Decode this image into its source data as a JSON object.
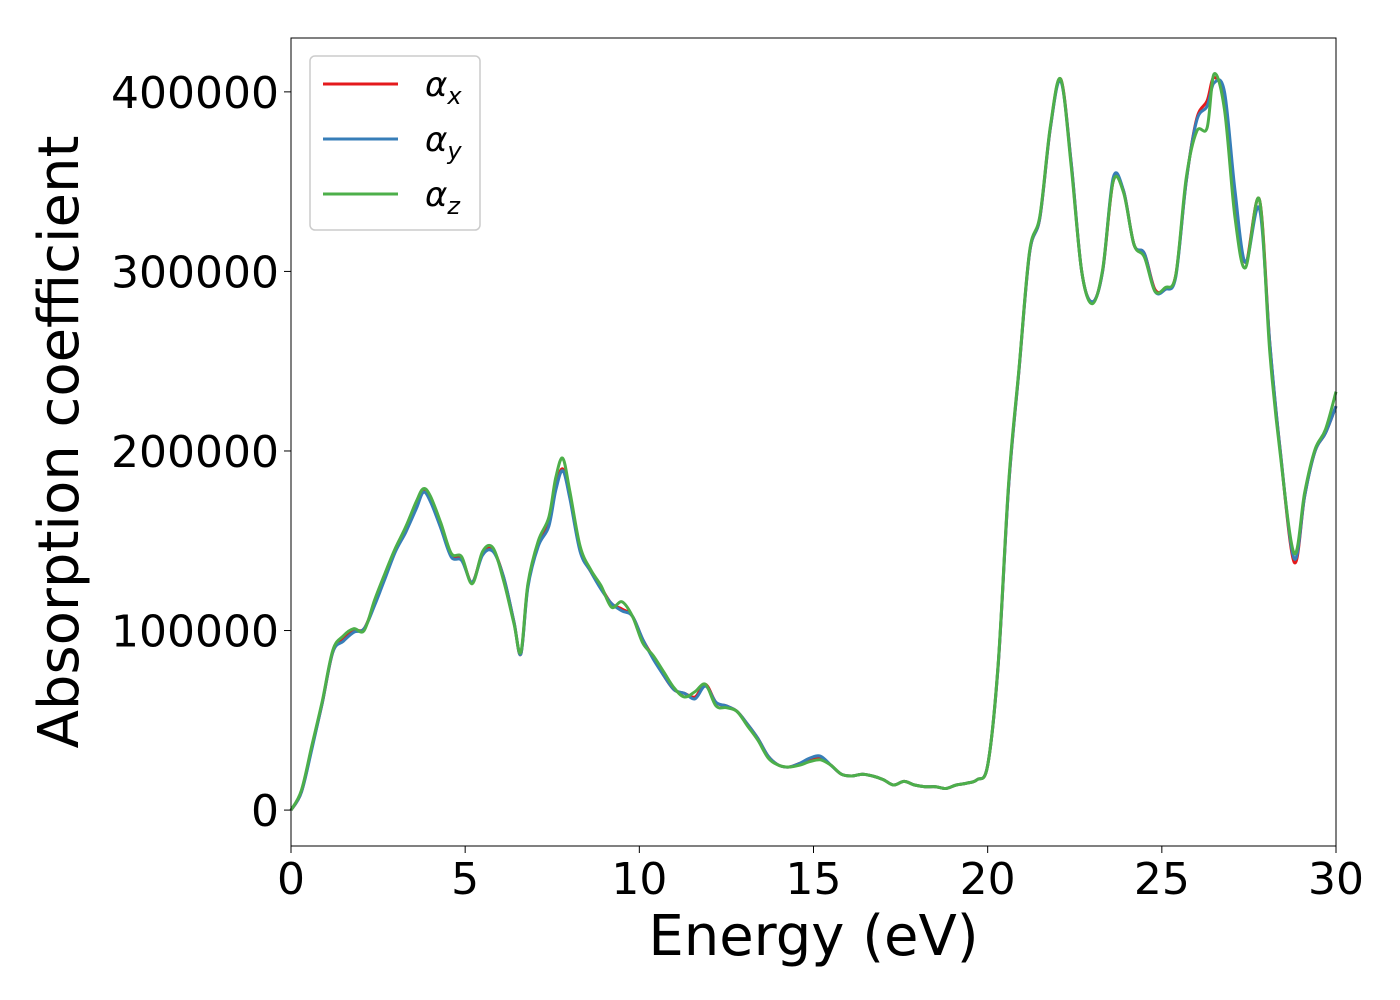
{
  "chart_data": {
    "type": "line",
    "title": "",
    "xlabel": "Energy (eV)",
    "ylabel": "Absorption coefficient",
    "xlim": [
      0,
      30
    ],
    "ylim": [
      -20000,
      430000
    ],
    "xticks": [
      0,
      5,
      10,
      15,
      20,
      25,
      30
    ],
    "xtick_labels": [
      "0",
      "5",
      "10",
      "15",
      "20",
      "25",
      "30"
    ],
    "yticks": [
      0,
      100000,
      200000,
      300000,
      400000
    ],
    "ytick_labels": [
      "0",
      "100000",
      "200000",
      "300000",
      "400000"
    ],
    "grid": false,
    "legend_position": "top-left",
    "series": [
      {
        "name": "α",
        "subscript": "x",
        "color": "#e41a1c",
        "x": [
          0,
          0.3,
          0.6,
          0.9,
          1.2,
          1.5,
          1.8,
          2.1,
          2.4,
          2.7,
          3.0,
          3.3,
          3.6,
          3.8,
          4.0,
          4.3,
          4.6,
          4.9,
          5.2,
          5.5,
          5.8,
          6.1,
          6.4,
          6.6,
          6.8,
          7.1,
          7.4,
          7.6,
          7.8,
          8.0,
          8.3,
          8.6,
          8.9,
          9.2,
          9.5,
          9.8,
          10.1,
          10.4,
          10.7,
          11.0,
          11.3,
          11.6,
          11.9,
          12.2,
          12.5,
          12.8,
          13.1,
          13.4,
          13.7,
          14.0,
          14.3,
          14.6,
          14.9,
          15.2,
          15.5,
          15.8,
          16.1,
          16.4,
          16.7,
          17.0,
          17.3,
          17.6,
          17.9,
          18.2,
          18.5,
          18.8,
          19.1,
          19.4,
          19.7,
          20.0,
          20.3,
          20.6,
          20.9,
          21.2,
          21.5,
          21.8,
          22.1,
          22.4,
          22.7,
          23.0,
          23.3,
          23.6,
          23.9,
          24.2,
          24.5,
          24.8,
          25.1,
          25.4,
          25.7,
          26.0,
          26.3,
          26.5,
          26.8,
          27.1,
          27.4,
          27.8,
          28.1,
          28.4,
          28.8,
          29.1,
          29.4,
          29.7,
          30.0
        ],
        "y": [
          0,
          10000,
          35000,
          60000,
          88000,
          95000,
          100000,
          101000,
          115000,
          130000,
          145000,
          155000,
          170000,
          178000,
          173000,
          158000,
          142000,
          140000,
          127000,
          143000,
          145000,
          130000,
          105000,
          87000,
          125000,
          148000,
          160000,
          180000,
          190000,
          175000,
          145000,
          133000,
          124000,
          115000,
          112000,
          108000,
          95000,
          85000,
          75000,
          67000,
          65000,
          63000,
          70000,
          60000,
          58000,
          55000,
          48000,
          40000,
          30000,
          25000,
          24000,
          26000,
          28000,
          29000,
          25000,
          20000,
          19000,
          20000,
          19000,
          17000,
          14000,
          16000,
          14000,
          13000,
          13000,
          12000,
          14000,
          15000,
          17000,
          25000,
          80000,
          180000,
          245000,
          310000,
          330000,
          380000,
          407000,
          360000,
          300000,
          283000,
          300000,
          350000,
          345000,
          315000,
          310000,
          290000,
          290000,
          298000,
          350000,
          385000,
          395000,
          408000,
          395000,
          340000,
          305000,
          340000,
          260000,
          200000,
          138000,
          175000,
          200000,
          210000,
          225000
        ]
      },
      {
        "name": "α",
        "subscript": "y",
        "color": "#377eb8",
        "x": [
          0,
          0.3,
          0.6,
          0.9,
          1.2,
          1.5,
          1.8,
          2.1,
          2.4,
          2.7,
          3.0,
          3.3,
          3.6,
          3.8,
          4.0,
          4.3,
          4.6,
          4.9,
          5.2,
          5.5,
          5.8,
          6.1,
          6.4,
          6.6,
          6.8,
          7.1,
          7.4,
          7.6,
          7.8,
          8.0,
          8.3,
          8.6,
          8.9,
          9.2,
          9.5,
          9.8,
          10.1,
          10.4,
          10.7,
          11.0,
          11.3,
          11.6,
          11.9,
          12.2,
          12.5,
          12.8,
          13.1,
          13.4,
          13.7,
          14.0,
          14.3,
          14.6,
          14.9,
          15.2,
          15.5,
          15.8,
          16.1,
          16.4,
          16.7,
          17.0,
          17.3,
          17.6,
          17.9,
          18.2,
          18.5,
          18.8,
          19.1,
          19.4,
          19.7,
          20.0,
          20.3,
          20.6,
          20.9,
          21.2,
          21.5,
          21.8,
          22.1,
          22.4,
          22.7,
          23.0,
          23.3,
          23.6,
          23.9,
          24.2,
          24.5,
          24.8,
          25.1,
          25.4,
          25.7,
          26.0,
          26.3,
          26.5,
          26.8,
          27.1,
          27.4,
          27.8,
          28.1,
          28.4,
          28.8,
          29.1,
          29.4,
          29.7,
          30.0
        ],
        "y": [
          0,
          10000,
          34000,
          60000,
          88000,
          94000,
          99000,
          101000,
          114000,
          129000,
          144000,
          155000,
          168000,
          177000,
          172000,
          157000,
          141000,
          139000,
          127000,
          142000,
          144000,
          130000,
          105000,
          87000,
          124000,
          147000,
          158000,
          178000,
          189000,
          174000,
          144000,
          133000,
          123000,
          115000,
          111000,
          108000,
          95000,
          84000,
          75000,
          67000,
          65000,
          62000,
          69000,
          60000,
          58000,
          55000,
          48000,
          40000,
          30000,
          25000,
          24000,
          26000,
          29000,
          30000,
          25000,
          20000,
          19000,
          20000,
          19000,
          17000,
          14000,
          16000,
          14000,
          13000,
          13000,
          12000,
          14000,
          15000,
          17000,
          25000,
          80000,
          180000,
          245000,
          310000,
          330000,
          380000,
          406000,
          360000,
          300000,
          283000,
          300000,
          352000,
          345000,
          315000,
          310000,
          289000,
          290000,
          297000,
          350000,
          384000,
          392000,
          405000,
          400000,
          345000,
          305000,
          335000,
          260000,
          200000,
          140000,
          175000,
          200000,
          210000,
          225000
        ]
      },
      {
        "name": "α",
        "subscript": "z",
        "color": "#4daf4a",
        "x": [
          0,
          0.3,
          0.6,
          0.9,
          1.2,
          1.5,
          1.8,
          2.1,
          2.4,
          2.7,
          3.0,
          3.3,
          3.6,
          3.8,
          4.0,
          4.3,
          4.6,
          4.9,
          5.2,
          5.5,
          5.8,
          6.1,
          6.4,
          6.6,
          6.8,
          7.1,
          7.4,
          7.6,
          7.8,
          8.0,
          8.3,
          8.6,
          8.9,
          9.2,
          9.5,
          9.8,
          10.1,
          10.4,
          10.7,
          11.0,
          11.3,
          11.6,
          11.9,
          12.2,
          12.5,
          12.8,
          13.1,
          13.4,
          13.7,
          14.0,
          14.3,
          14.6,
          14.9,
          15.2,
          15.5,
          15.8,
          16.1,
          16.4,
          16.7,
          17.0,
          17.3,
          17.6,
          17.9,
          18.2,
          18.5,
          18.8,
          19.1,
          19.4,
          19.7,
          20.0,
          20.3,
          20.6,
          20.9,
          21.2,
          21.5,
          21.8,
          22.1,
          22.4,
          22.7,
          23.0,
          23.3,
          23.6,
          23.9,
          24.2,
          24.5,
          24.8,
          25.1,
          25.4,
          25.7,
          26.0,
          26.3,
          26.5,
          26.8,
          27.1,
          27.4,
          27.8,
          28.1,
          28.4,
          28.8,
          29.1,
          29.4,
          29.7,
          30.0
        ],
        "y": [
          0,
          11000,
          36000,
          61000,
          89000,
          97000,
          101000,
          100000,
          117000,
          132000,
          146000,
          158000,
          172000,
          179000,
          175000,
          160000,
          143000,
          141000,
          126000,
          144000,
          146000,
          128000,
          104000,
          88000,
          126000,
          150000,
          163000,
          185000,
          196000,
          178000,
          147000,
          134000,
          125000,
          113000,
          116000,
          108000,
          93000,
          86000,
          77000,
          68000,
          63000,
          66000,
          70000,
          58000,
          57000,
          55000,
          47000,
          39000,
          29000,
          25000,
          24000,
          25000,
          27000,
          28000,
          25000,
          20000,
          19000,
          20000,
          19000,
          17000,
          14000,
          16000,
          14000,
          13000,
          13000,
          12000,
          14000,
          15000,
          17000,
          25000,
          81000,
          182000,
          246000,
          311000,
          331000,
          381000,
          407000,
          358000,
          300000,
          282000,
          301000,
          350000,
          344000,
          315000,
          308000,
          289000,
          291000,
          298000,
          352000,
          378000,
          380000,
          410000,
          390000,
          330000,
          302000,
          340000,
          255000,
          198000,
          143000,
          177000,
          201000,
          212000,
          233000
        ]
      }
    ]
  }
}
